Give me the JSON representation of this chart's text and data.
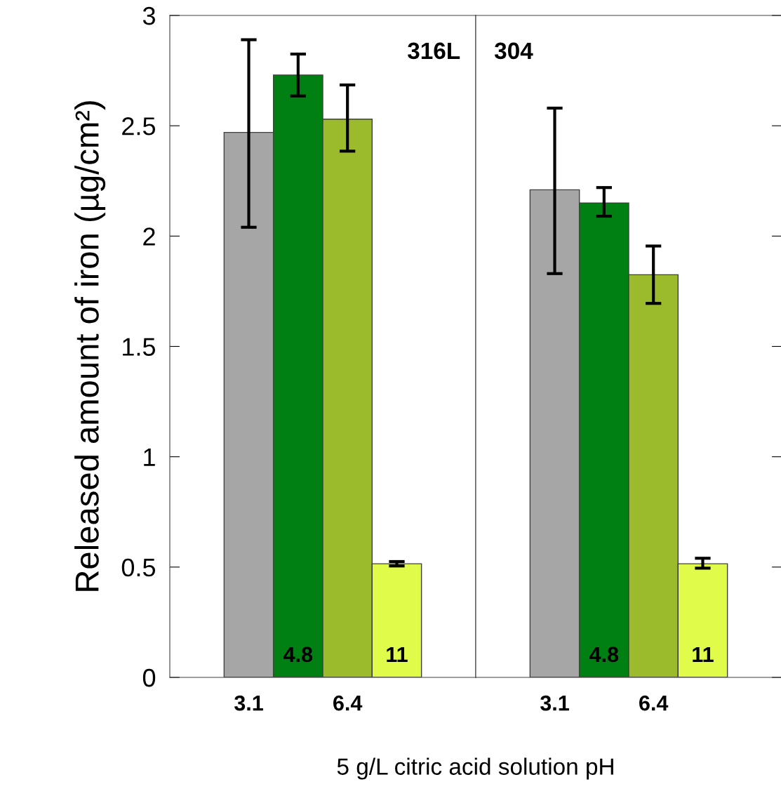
{
  "chart_data": [
    {
      "type": "bar",
      "title": "316L",
      "ylabel": "Released amount of iron (µg/cm²)",
      "xlabel": "5 g/L citric acid solution pH",
      "categories": [
        "3.1",
        "4.8",
        "6.4",
        "11"
      ],
      "values": [
        2.47,
        2.73,
        2.53,
        0.515
      ],
      "errors": [
        [
          2.04,
          2.89
        ],
        [
          2.635,
          2.825
        ],
        [
          2.385,
          2.685
        ],
        [
          0.505,
          0.525
        ]
      ],
      "colors": [
        "#a6a6a6",
        "#007f12",
        "#9bbb2d",
        "#e0fb4a"
      ],
      "ylim": [
        0,
        3
      ],
      "yticks": [
        {
          "value": 0,
          "label": "0"
        },
        0.5,
        1,
        1.5,
        2,
        2.5,
        3
      ],
      "grid": false,
      "legend": false
    },
    {
      "type": "bar",
      "title": "304",
      "categories": [
        "3.1",
        "4.8",
        "6.4",
        "11"
      ],
      "values": [
        2.21,
        2.15,
        1.825,
        0.515
      ],
      "errors": [
        [
          1.83,
          2.58
        ],
        [
          2.09,
          2.22
        ],
        [
          1.695,
          1.955
        ],
        [
          0.495,
          0.54
        ]
      ],
      "colors": [
        "#a6a6a6",
        "#007f12",
        "#9bbb2d",
        "#e0fb4a"
      ],
      "ylim": [
        0,
        3
      ],
      "yticks": [
        {
          "value": 0,
          "label": null
        },
        {
          "value": 0.5,
          "label": null
        },
        {
          "value": 1,
          "label": null
        },
        {
          "value": 1.5,
          "label": null
        },
        {
          "value": 2,
          "label": null
        },
        {
          "value": 2.5,
          "label": null
        },
        {
          "value": 3,
          "label": null
        }
      ],
      "tick_labels": "x",
      "grid": false,
      "legend": false
    }
  ]
}
